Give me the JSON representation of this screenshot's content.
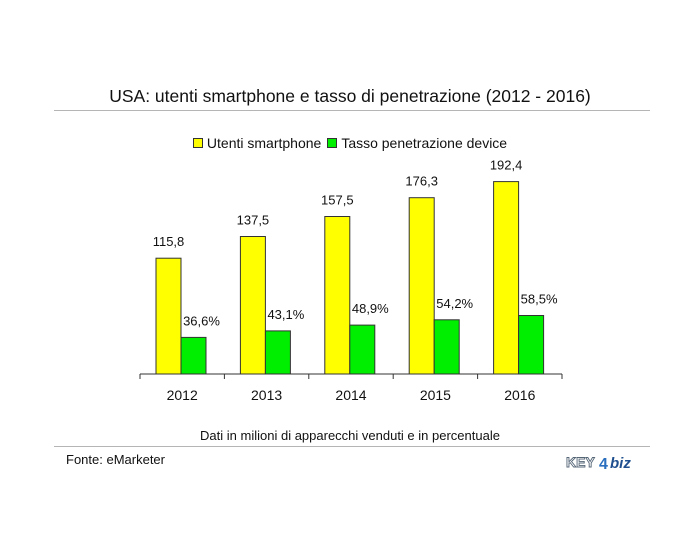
{
  "colors": {
    "series1": "#ffff00",
    "series2": "#00ee00",
    "axis": "#333333",
    "rule": "#b5b5b5"
  },
  "footer": {
    "note": "Dati in milioni di apparecchi venduti e in percentuale",
    "source": "Fonte: eMarketer"
  },
  "logo": {
    "text_a": "KEY",
    "text_b": "biz",
    "digit": "4"
  },
  "chart_data": {
    "type": "bar",
    "title": "USA: utenti smartphone e tasso di penetrazione (2012 - 2016)",
    "categories": [
      "2012",
      "2013",
      "2014",
      "2015",
      "2016"
    ],
    "series": [
      {
        "name": "Utenti smartphone",
        "values": [
          115.8,
          137.5,
          157.5,
          176.3,
          192.4
        ],
        "labels": [
          "115,8",
          "137,5",
          "157,5",
          "176,3",
          "192,4"
        ],
        "color": "#ffff00"
      },
      {
        "name": "Tasso penetrazione device",
        "values": [
          36.6,
          43.1,
          48.9,
          54.2,
          58.5
        ],
        "labels": [
          "36,6%",
          "43,1%",
          "48,9%",
          "54,2%",
          "58,5%"
        ],
        "color": "#00ee00"
      }
    ],
    "ylim": [
      0,
      200
    ],
    "legend": "top",
    "grid": false
  }
}
